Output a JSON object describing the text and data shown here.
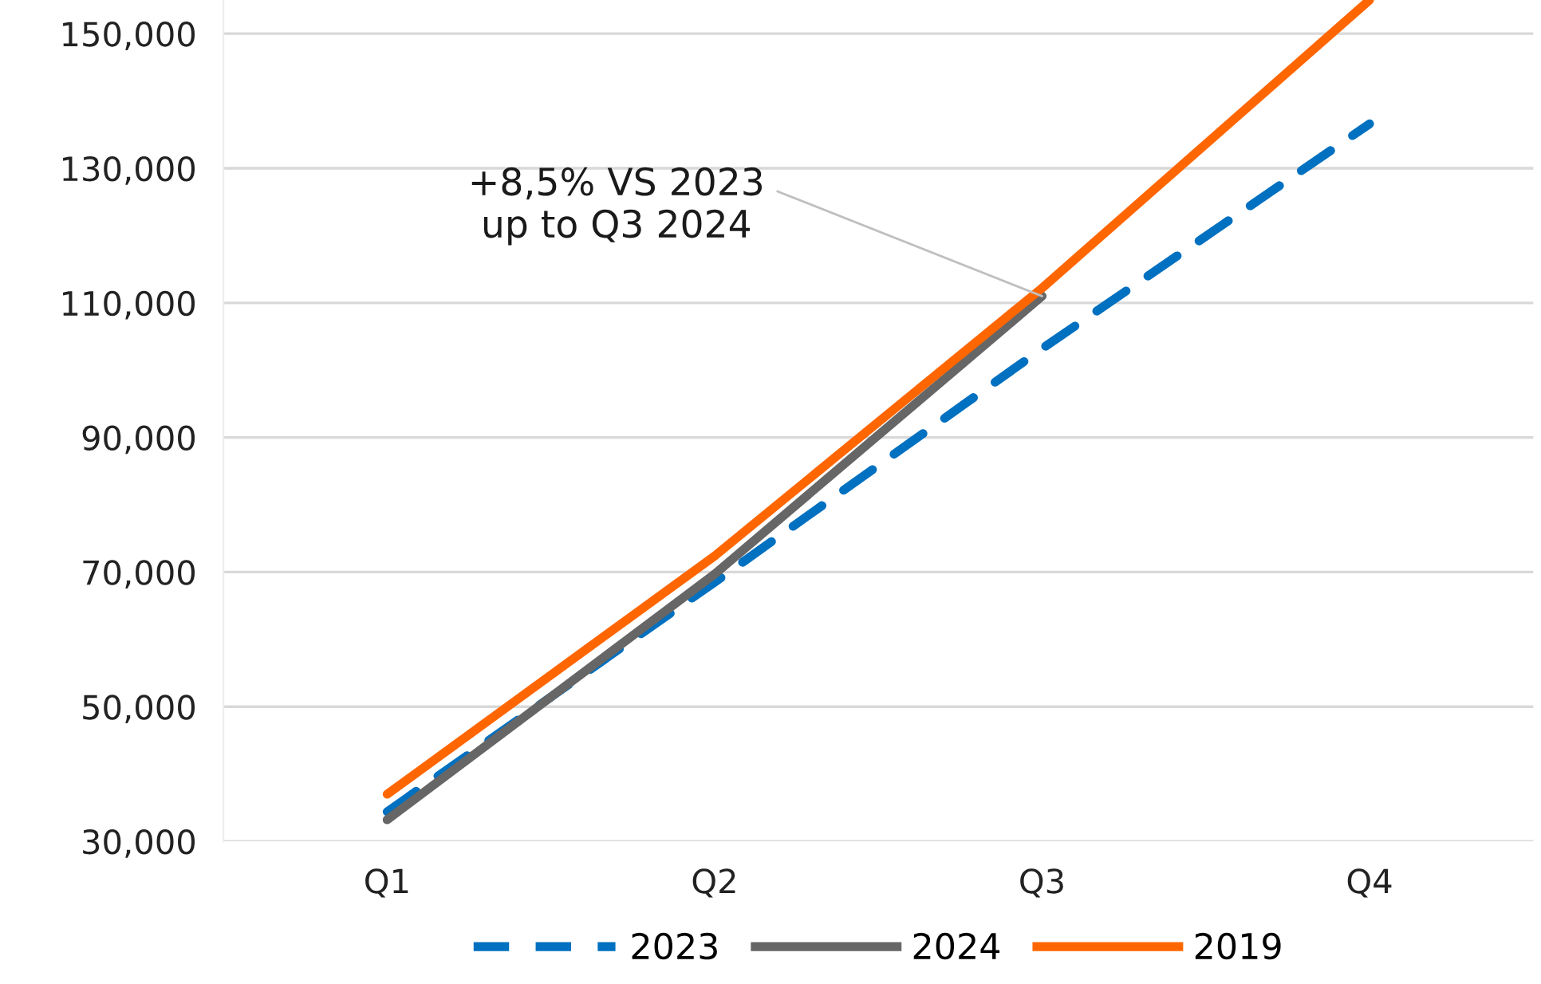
{
  "chart_data": {
    "type": "line",
    "categories": [
      "Q1",
      "Q2",
      "Q3",
      "Q4"
    ],
    "series": [
      {
        "name": "2023",
        "color": "#0070c0",
        "line_style": "dashed",
        "values": [
          34400,
          68500,
          103200,
          136600
        ]
      },
      {
        "name": "2024",
        "color": "#666666",
        "line_style": "solid",
        "values": [
          33200,
          69700,
          111000,
          null
        ]
      },
      {
        "name": "2019",
        "color": "#ff6600",
        "line_style": "solid",
        "values": [
          37000,
          72400,
          112200,
          155000
        ]
      }
    ],
    "ylim": [
      30000,
      155000
    ],
    "yticks": [
      {
        "value": 30000,
        "label": "30,000"
      },
      {
        "value": 50000,
        "label": "50,000"
      },
      {
        "value": 70000,
        "label": "70,000"
      },
      {
        "value": 90000,
        "label": "90,000"
      },
      {
        "value": 110000,
        "label": "110,000"
      },
      {
        "value": 130000,
        "label": "130,000"
      },
      {
        "value": 150000,
        "label": "150,000"
      }
    ],
    "grid": "y",
    "legend": "bottom",
    "marker": "none",
    "annotations": [
      {
        "text": "+8,5% VS 2023\nup to Q3 2024",
        "x": "Q3",
        "y": 111000
      }
    ]
  }
}
